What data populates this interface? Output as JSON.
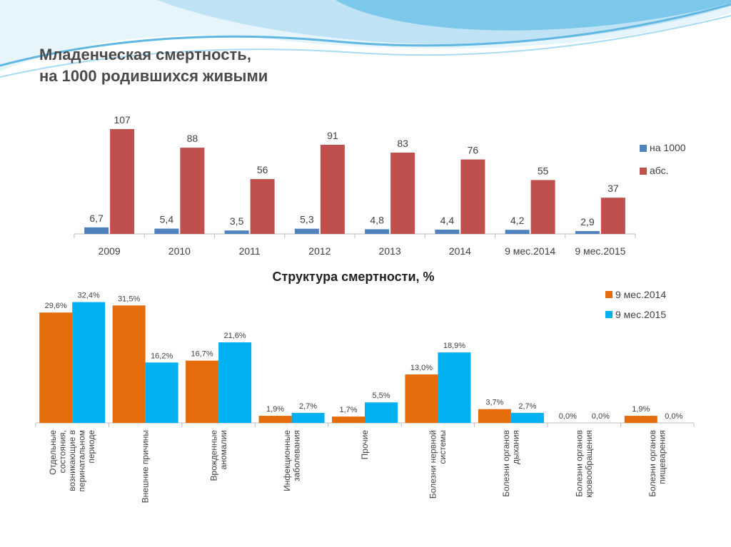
{
  "slide": {
    "title_line1": "Младенческая смертность,",
    "title_line2": "на 1000 родившихся живыми"
  },
  "chart_data": [
    {
      "type": "bar",
      "title": "",
      "categories": [
        "2009",
        "2010",
        "2011",
        "2012",
        "2013",
        "2014",
        "9 мес.2014",
        "9 мес.2015"
      ],
      "series": [
        {
          "name": "на 1000",
          "values": [
            6.7,
            5.4,
            3.5,
            5.3,
            4.8,
            4.4,
            4.2,
            2.9
          ],
          "labels": [
            "6,7",
            "5,4",
            "3,5",
            "5,3",
            "4,8",
            "4,4",
            "4,2",
            "2,9"
          ],
          "color": "#4f81bd"
        },
        {
          "name": "абс.",
          "values": [
            107,
            88,
            56,
            91,
            83,
            76,
            55,
            37
          ],
          "labels": [
            "107",
            "88",
            "56",
            "91",
            "83",
            "76",
            "55",
            "37"
          ],
          "color": "#c0504d"
        }
      ],
      "ylim": [
        0,
        115
      ],
      "legend": "right",
      "grid": false
    },
    {
      "type": "bar",
      "title": "Структура смертности, %",
      "categories": [
        "Отдельные состояния, возникающие в перинатальном периоде",
        "Внешние причины",
        "Врожденные аномалии",
        "Инфекционные заболевания",
        "Прочие",
        "Болезни нервной системы",
        "Болезни органов дыхания",
        "Болезни органов кровообращения",
        "Болезни органов пищеварения"
      ],
      "category_lines": [
        [
          "Отдельные",
          "состояния,",
          "возникающие в",
          "перинатальном",
          "периоде"
        ],
        [
          "Внешние причины"
        ],
        [
          "Врожденные",
          "аномалии"
        ],
        [
          "Инфекционные",
          "заболевания"
        ],
        [
          "Прочие"
        ],
        [
          "Болезни нервной",
          "системы"
        ],
        [
          "Болезни органов",
          "дыхания"
        ],
        [
          "Болезни органов",
          "кровообращения"
        ],
        [
          "Болезни органов",
          "пищеварения"
        ]
      ],
      "series": [
        {
          "name": "9 мес.2014",
          "values": [
            29.6,
            31.5,
            16.7,
            1.9,
            1.7,
            13.0,
            3.7,
            0.0,
            1.9
          ],
          "labels": [
            "29,6%",
            "31,5%",
            "16,7%",
            "1,9%",
            "1,7%",
            "13,0%",
            "3,7%",
            "0,0%",
            "1,9%"
          ],
          "color": "#e46c0a"
        },
        {
          "name": "9 мес.2015",
          "values": [
            32.4,
            16.2,
            21.6,
            2.7,
            5.5,
            18.9,
            2.7,
            0.0,
            0.0
          ],
          "labels": [
            "32,4%",
            "16,2%",
            "21,6%",
            "2,7%",
            "5,5%",
            "18,9%",
            "2,7%",
            "0,0%",
            "0,0%"
          ],
          "color": "#00b0f0"
        }
      ],
      "ylim": [
        0,
        35
      ],
      "legend": "top-right",
      "grid": false
    }
  ]
}
